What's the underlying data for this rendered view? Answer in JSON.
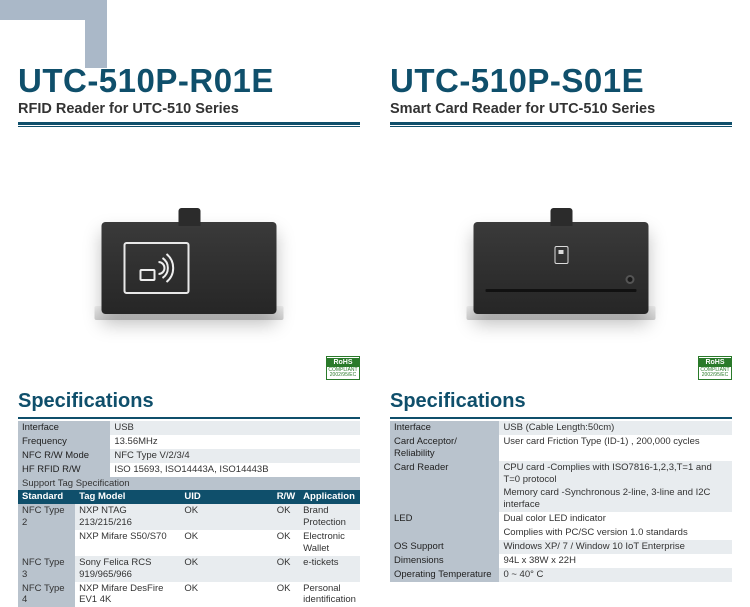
{
  "left": {
    "model": "UTC-510P-R01E",
    "subtitle": "RFID Reader for UTC-510 Series",
    "rohs": {
      "top": "RoHS",
      "bottom": "COMPLIANT 2002/95/EC"
    },
    "specs_heading": "Specifications",
    "rows": [
      {
        "label": "Interface",
        "value": "USB"
      },
      {
        "label": "Frequency",
        "value": "13.56MHz"
      },
      {
        "label": "NFC R/W Mode",
        "value": "NFC Type V/2/3/4"
      },
      {
        "label": "HF RFID R/W",
        "value": "ISO 15693, ISO14443A, ISO14443B"
      }
    ],
    "support_label": "Support Tag Specification",
    "tag_header": [
      "Standard",
      "Tag Model",
      "UID",
      "R/W",
      "Application"
    ],
    "tag_rows": [
      {
        "std": "NFC Type 2",
        "span": 2,
        "model": "NXP NTAG 213/215/216",
        "uid": "OK",
        "rw": "OK",
        "app": "Brand Protection"
      },
      {
        "std": "",
        "span": 0,
        "model": "NXP Mifare S50/S70",
        "uid": "OK",
        "rw": "OK",
        "app": "Electronic Wallet"
      },
      {
        "std": "NFC Type 3",
        "span": 1,
        "model": "Sony Felica RCS 919/965/966",
        "uid": "OK",
        "rw": "OK",
        "app": "e-tickets"
      },
      {
        "std": "NFC Type 4",
        "span": 1,
        "model": "NXP  Mifare DesFire EV1 4K",
        "uid": "OK",
        "rw": "OK",
        "app": "Personal identification"
      }
    ]
  },
  "right": {
    "model": "UTC-510P-S01E",
    "subtitle": "Smart Card Reader for UTC-510 Series",
    "rohs": {
      "top": "RoHS",
      "bottom": "COMPLIANT 2002/95/EC"
    },
    "specs_heading": "Specifications",
    "rows": [
      {
        "label": "Interface",
        "value": "USB (Cable Length:50cm)"
      },
      {
        "label": "Card Acceptor/ Reliability",
        "value": "User card  Friction Type (ID-1) , 200,000 cycles"
      },
      {
        "label": "Card Reader",
        "value": "CPU card -Complies with ISO7816-1,2,3,T=1 and T=0 protocol\nMemory card -Synchronous 2-line, 3-line and I2C interface"
      },
      {
        "label": "LED",
        "value": "Dual color LED indicator\nComplies with PC/SC version 1.0 standards"
      },
      {
        "label": "OS Support",
        "value": "Windows XP/ 7 / Window 10 IoT Enterprise"
      },
      {
        "label": "Dimensions",
        "value": "94L x 38W x 22H"
      },
      {
        "label": "Operating Temperature",
        "value": "0 ~ 40° C"
      }
    ]
  },
  "colors": {
    "brand": "#0f4f6b",
    "rowHeader": "#b9c3cd",
    "rowEven": "#e8ecef",
    "rowOdd": "#ffffff"
  }
}
